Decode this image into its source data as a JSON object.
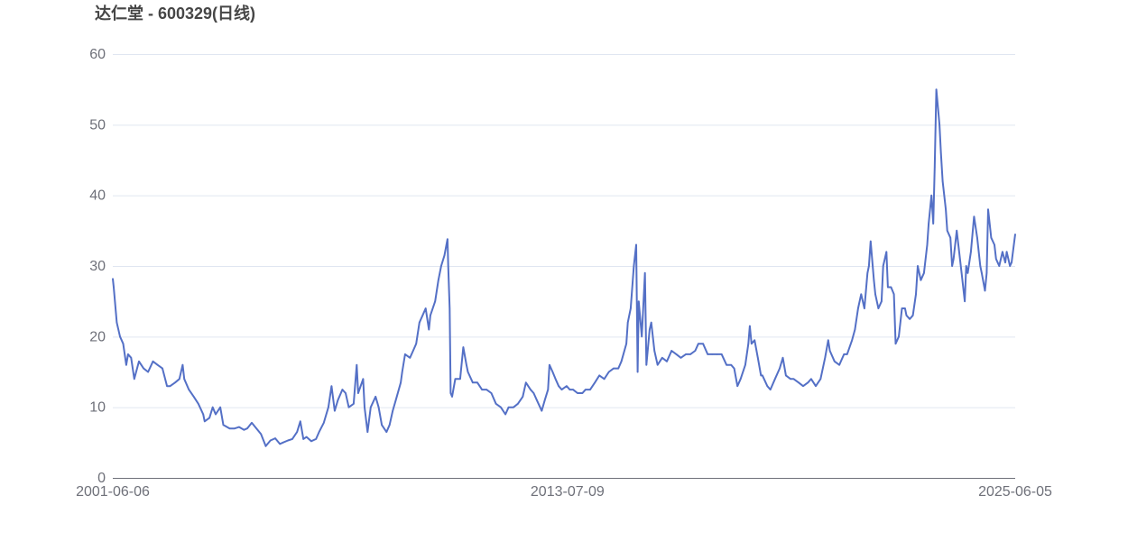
{
  "chart_data": {
    "type": "line",
    "title": "达仁堂 - 600329(日线)",
    "xlabel": "",
    "ylabel": "",
    "ylim": [
      0,
      60
    ],
    "yticks": [
      "0",
      "10",
      "20",
      "30",
      "40",
      "50",
      "60"
    ],
    "xticks": [
      "2001-06-06",
      "2013-07-09",
      "2025-06-05"
    ],
    "xlim": [
      "2001-06-06",
      "2025-06-05"
    ],
    "grid": true,
    "color": "#5470c6",
    "points": [
      [
        "2001-06-06",
        28.2
      ],
      [
        "2001-06-15",
        27
      ],
      [
        "2001-07-15",
        22
      ],
      [
        "2001-08-15",
        20
      ],
      [
        "2001-09-15",
        19
      ],
      [
        "2001-10-15",
        16
      ],
      [
        "2001-11-01",
        17.5
      ],
      [
        "2001-12-01",
        17
      ],
      [
        "2002-01-01",
        14
      ],
      [
        "2002-02-15",
        16.5
      ],
      [
        "2002-04-01",
        15.5
      ],
      [
        "2002-05-15",
        15
      ],
      [
        "2002-07-01",
        16.5
      ],
      [
        "2002-08-15",
        16
      ],
      [
        "2002-10-01",
        15.5
      ],
      [
        "2002-11-15",
        13
      ],
      [
        "2002-12-15",
        13
      ],
      [
        "2003-02-01",
        13.5
      ],
      [
        "2003-03-15",
        14
      ],
      [
        "2003-04-15",
        16
      ],
      [
        "2003-05-01",
        14
      ],
      [
        "2003-06-15",
        12.5
      ],
      [
        "2003-08-01",
        11.5
      ],
      [
        "2003-09-15",
        10.5
      ],
      [
        "2003-11-01",
        9
      ],
      [
        "2003-11-15",
        8
      ],
      [
        "2004-01-01",
        8.5
      ],
      [
        "2004-02-01",
        10
      ],
      [
        "2004-03-01",
        9
      ],
      [
        "2004-04-15",
        10
      ],
      [
        "2004-05-15",
        7.5
      ],
      [
        "2004-07-15",
        7
      ],
      [
        "2004-09-01",
        7
      ],
      [
        "2004-10-15",
        7.2
      ],
      [
        "2004-12-01",
        6.8
      ],
      [
        "2005-01-01",
        7
      ],
      [
        "2005-02-15",
        7.8
      ],
      [
        "2005-04-01",
        7
      ],
      [
        "2005-05-15",
        6.2
      ],
      [
        "2005-07-01",
        4.5
      ],
      [
        "2005-08-15",
        5.3
      ],
      [
        "2005-10-01",
        5.6
      ],
      [
        "2005-11-15",
        4.8
      ],
      [
        "2005-12-15",
        5
      ],
      [
        "2006-02-01",
        5.3
      ],
      [
        "2006-03-15",
        5.5
      ],
      [
        "2006-05-01",
        6.5
      ],
      [
        "2006-06-01",
        8
      ],
      [
        "2006-07-01",
        5.5
      ],
      [
        "2006-08-01",
        5.8
      ],
      [
        "2006-09-15",
        5.2
      ],
      [
        "2006-11-01",
        5.5
      ],
      [
        "2006-12-01",
        6.5
      ],
      [
        "2007-01-15",
        7.8
      ],
      [
        "2007-03-01",
        10
      ],
      [
        "2007-04-01",
        13
      ],
      [
        "2007-05-01",
        9.5
      ],
      [
        "2007-06-01",
        11
      ],
      [
        "2007-07-15",
        12.5
      ],
      [
        "2007-08-15",
        12
      ],
      [
        "2007-09-15",
        10
      ],
      [
        "2007-11-01",
        10.5
      ],
      [
        "2007-12-01",
        16
      ],
      [
        "2007-12-15",
        12
      ],
      [
        "2008-02-01",
        14
      ],
      [
        "2008-02-15",
        10
      ],
      [
        "2008-03-15",
        6.5
      ],
      [
        "2008-04-15",
        10
      ],
      [
        "2008-06-01",
        11.5
      ],
      [
        "2008-07-01",
        10
      ],
      [
        "2008-08-01",
        7.5
      ],
      [
        "2008-09-15",
        6.5
      ],
      [
        "2008-10-15",
        7.5
      ],
      [
        "2008-11-15",
        9.5
      ],
      [
        "2008-12-15",
        11
      ],
      [
        "2009-02-01",
        13.5
      ],
      [
        "2009-02-15",
        15
      ],
      [
        "2009-03-15",
        17.5
      ],
      [
        "2009-05-01",
        17
      ],
      [
        "2009-06-01",
        18
      ],
      [
        "2009-07-01",
        19
      ],
      [
        "2009-08-01",
        22
      ],
      [
        "2009-09-01",
        23
      ],
      [
        "2009-10-01",
        24
      ],
      [
        "2009-11-01",
        21
      ],
      [
        "2009-11-15",
        23
      ],
      [
        "2010-01-01",
        25
      ],
      [
        "2010-02-01",
        28
      ],
      [
        "2010-03-01",
        30
      ],
      [
        "2010-04-01",
        31.5
      ],
      [
        "2010-05-01",
        33.8
      ],
      [
        "2010-05-08",
        30
      ],
      [
        "2010-05-22",
        24
      ],
      [
        "2010-06-01",
        12
      ],
      [
        "2010-06-15",
        11.5
      ],
      [
        "2010-07-15",
        14
      ],
      [
        "2010-09-01",
        14
      ],
      [
        "2010-10-01",
        18.5
      ],
      [
        "2010-11-01",
        16
      ],
      [
        "2010-11-15",
        15
      ],
      [
        "2011-01-01",
        13.5
      ],
      [
        "2011-02-15",
        13.5
      ],
      [
        "2011-04-01",
        12.5
      ],
      [
        "2011-05-15",
        12.5
      ],
      [
        "2011-07-01",
        12
      ],
      [
        "2011-08-15",
        10.5
      ],
      [
        "2011-10-01",
        10
      ],
      [
        "2011-11-15",
        9
      ],
      [
        "2011-12-15",
        10
      ],
      [
        "2012-02-01",
        10
      ],
      [
        "2012-03-15",
        10.5
      ],
      [
        "2012-05-01",
        11.5
      ],
      [
        "2012-06-01",
        13.5
      ],
      [
        "2012-07-15",
        12.5
      ],
      [
        "2012-08-15",
        12
      ],
      [
        "2012-09-15",
        11
      ],
      [
        "2012-11-01",
        9.5
      ],
      [
        "2012-12-01",
        11
      ],
      [
        "2013-01-01",
        12.5
      ],
      [
        "2013-01-15",
        16
      ],
      [
        "2013-02-15",
        15
      ],
      [
        "2013-03-15",
        14
      ],
      [
        "2013-04-15",
        13
      ],
      [
        "2013-05-15",
        12.5
      ],
      [
        "2013-07-01",
        13
      ],
      [
        "2013-08-01",
        12.5
      ],
      [
        "2013-09-01",
        12.5
      ],
      [
        "2013-10-15",
        12
      ],
      [
        "2013-12-01",
        12
      ],
      [
        "2014-01-01",
        12.5
      ],
      [
        "2014-02-15",
        12.5
      ],
      [
        "2014-04-01",
        13.5
      ],
      [
        "2014-05-15",
        14.5
      ],
      [
        "2014-07-01",
        14
      ],
      [
        "2014-08-15",
        15
      ],
      [
        "2014-10-01",
        15.5
      ],
      [
        "2014-11-15",
        15.5
      ],
      [
        "2014-12-15",
        16.5
      ],
      [
        "2015-02-01",
        19
      ],
      [
        "2015-02-15",
        22
      ],
      [
        "2015-03-15",
        24
      ],
      [
        "2015-04-15",
        30
      ],
      [
        "2015-05-08",
        33
      ],
      [
        "2015-05-22",
        15
      ],
      [
        "2015-06-01",
        25
      ],
      [
        "2015-07-01",
        20
      ],
      [
        "2015-08-01",
        29
      ],
      [
        "2015-08-15",
        16
      ],
      [
        "2015-09-15",
        21
      ],
      [
        "2015-10-01",
        22
      ],
      [
        "2015-11-01",
        18
      ],
      [
        "2015-12-01",
        16
      ],
      [
        "2016-01-15",
        17
      ],
      [
        "2016-03-01",
        16.5
      ],
      [
        "2016-04-15",
        18
      ],
      [
        "2016-06-01",
        17.5
      ],
      [
        "2016-07-15",
        17
      ],
      [
        "2016-09-01",
        17.5
      ],
      [
        "2016-10-15",
        17.5
      ],
      [
        "2016-12-01",
        18
      ],
      [
        "2017-01-01",
        19
      ],
      [
        "2017-02-15",
        19
      ],
      [
        "2017-04-01",
        17.5
      ],
      [
        "2017-05-15",
        17.5
      ],
      [
        "2017-07-01",
        17.5
      ],
      [
        "2017-08-15",
        17.5
      ],
      [
        "2017-10-01",
        16
      ],
      [
        "2017-11-15",
        16
      ],
      [
        "2017-12-15",
        15.5
      ],
      [
        "2018-01-15",
        13
      ],
      [
        "2018-02-15",
        14
      ],
      [
        "2018-04-01",
        16
      ],
      [
        "2018-05-01",
        19
      ],
      [
        "2018-05-15",
        21.5
      ],
      [
        "2018-06-01",
        19
      ],
      [
        "2018-07-01",
        19.5
      ],
      [
        "2018-08-01",
        17
      ],
      [
        "2018-09-01",
        14.5
      ],
      [
        "2018-09-15",
        14.5
      ],
      [
        "2018-11-01",
        13
      ],
      [
        "2018-12-01",
        12.5
      ],
      [
        "2019-01-15",
        14
      ],
      [
        "2019-03-01",
        15.5
      ],
      [
        "2019-04-01",
        17
      ],
      [
        "2019-05-01",
        14.5
      ],
      [
        "2019-06-15",
        14
      ],
      [
        "2019-07-15",
        14
      ],
      [
        "2019-09-01",
        13.5
      ],
      [
        "2019-10-15",
        13
      ],
      [
        "2019-12-01",
        13.5
      ],
      [
        "2020-01-01",
        14
      ],
      [
        "2020-02-15",
        13
      ],
      [
        "2020-04-01",
        14
      ],
      [
        "2020-05-15",
        17
      ],
      [
        "2020-06-15",
        19.5
      ],
      [
        "2020-07-01",
        18
      ],
      [
        "2020-08-15",
        16.5
      ],
      [
        "2020-10-01",
        16
      ],
      [
        "2020-11-15",
        17.5
      ],
      [
        "2020-12-15",
        17.5
      ],
      [
        "2021-02-01",
        19.5
      ],
      [
        "2021-03-01",
        21
      ],
      [
        "2021-04-01",
        24
      ],
      [
        "2021-05-01",
        26
      ],
      [
        "2021-06-01",
        24
      ],
      [
        "2021-07-01",
        29
      ],
      [
        "2021-07-15",
        30
      ],
      [
        "2021-08-01",
        33.5
      ],
      [
        "2021-09-01",
        28
      ],
      [
        "2021-09-15",
        26
      ],
      [
        "2021-10-15",
        24
      ],
      [
        "2021-11-15",
        25
      ],
      [
        "2021-12-01",
        30
      ],
      [
        "2022-01-01",
        32
      ],
      [
        "2022-01-15",
        27
      ],
      [
        "2022-02-15",
        27
      ],
      [
        "2022-03-15",
        26
      ],
      [
        "2022-04-01",
        19
      ],
      [
        "2022-05-01",
        20
      ],
      [
        "2022-06-01",
        24
      ],
      [
        "2022-07-01",
        24
      ],
      [
        "2022-07-15",
        23
      ],
      [
        "2022-08-15",
        22.5
      ],
      [
        "2022-09-15",
        23
      ],
      [
        "2022-10-15",
        26
      ],
      [
        "2022-11-01",
        30
      ],
      [
        "2022-12-01",
        28
      ],
      [
        "2023-01-01",
        29
      ],
      [
        "2023-02-01",
        33
      ],
      [
        "2023-02-15",
        36
      ],
      [
        "2023-03-15",
        40
      ],
      [
        "2023-04-01",
        36
      ],
      [
        "2023-04-15",
        44
      ],
      [
        "2023-05-01",
        55
      ],
      [
        "2023-06-01",
        50
      ],
      [
        "2023-06-15",
        46
      ],
      [
        "2023-07-01",
        42
      ],
      [
        "2023-08-01",
        38
      ],
      [
        "2023-08-15",
        35
      ],
      [
        "2023-09-15",
        34
      ],
      [
        "2023-10-01",
        30
      ],
      [
        "2023-10-15",
        31
      ],
      [
        "2023-11-15",
        35
      ],
      [
        "2023-12-01",
        33
      ],
      [
        "2024-01-01",
        29
      ],
      [
        "2024-02-01",
        25
      ],
      [
        "2024-02-15",
        30
      ],
      [
        "2024-03-01",
        29
      ],
      [
        "2024-04-01",
        32
      ],
      [
        "2024-05-01",
        37
      ],
      [
        "2024-06-01",
        34
      ],
      [
        "2024-07-01",
        30
      ],
      [
        "2024-07-15",
        29
      ],
      [
        "2024-08-15",
        26.5
      ],
      [
        "2024-09-01",
        29
      ],
      [
        "2024-09-15",
        38
      ],
      [
        "2024-10-15",
        34
      ],
      [
        "2024-11-15",
        33
      ],
      [
        "2024-12-01",
        31
      ],
      [
        "2025-01-01",
        30
      ],
      [
        "2025-02-01",
        32
      ],
      [
        "2025-03-01",
        30.5
      ],
      [
        "2025-03-15",
        32
      ],
      [
        "2025-04-15",
        30
      ],
      [
        "2025-05-01",
        30.5
      ],
      [
        "2025-06-05",
        34.5
      ]
    ]
  }
}
